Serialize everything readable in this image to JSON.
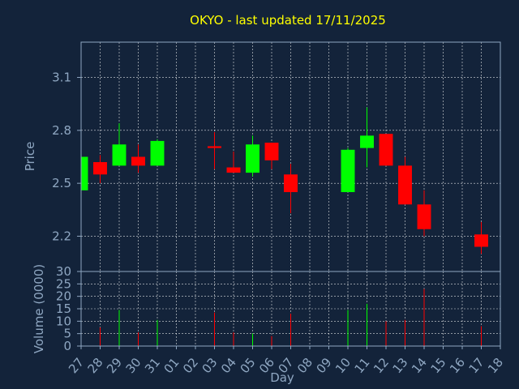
{
  "chart_data": {
    "type": "candlestick",
    "title": "OKYO - last updated 17/11/2025",
    "xlabel": "Day",
    "price_panel": {
      "ylabel": "Price",
      "ylim": [
        2.0,
        3.3
      ],
      "yticks": [
        2.2,
        2.5,
        2.8,
        3.1
      ],
      "ytick_labels": [
        "2.2",
        "2.5",
        "2.8",
        "3.1"
      ]
    },
    "volume_panel": {
      "ylabel": "Volume (0000)",
      "ylim": [
        0,
        30
      ],
      "yticks": [
        0,
        5,
        10,
        15,
        20,
        25,
        30
      ],
      "ytick_labels": [
        "0",
        "5",
        "10",
        "15",
        "20",
        "25",
        "30"
      ]
    },
    "x_tick_labels": [
      "27",
      "28",
      "29",
      "30",
      "31",
      "01",
      "02",
      "03",
      "04",
      "05",
      "06",
      "07",
      "08",
      "09",
      "10",
      "11",
      "12",
      "13",
      "14",
      "15",
      "16",
      "17",
      "18"
    ],
    "colors": {
      "up": "#00ff00",
      "down": "#ff0000",
      "background": "#13233a",
      "title": "#ffff00",
      "axis": "#8fa7c2",
      "grid": "#ffffff"
    },
    "candles": [
      {
        "day": "27",
        "open": 2.46,
        "high": 2.65,
        "low": 2.46,
        "close": 2.65,
        "volume": 0
      },
      {
        "day": "28",
        "open": 2.62,
        "high": 2.66,
        "low": 2.5,
        "close": 2.55,
        "volume": 7.5
      },
      {
        "day": "29",
        "open": 2.6,
        "high": 2.84,
        "low": 2.6,
        "close": 2.72,
        "volume": 14.5
      },
      {
        "day": "30",
        "open": 2.65,
        "high": 2.72,
        "low": 2.56,
        "close": 2.6,
        "volume": 5.5
      },
      {
        "day": "31",
        "open": 2.6,
        "high": 2.75,
        "low": 2.6,
        "close": 2.74,
        "volume": 10.5
      },
      {
        "day": "03",
        "open": 2.71,
        "high": 2.79,
        "low": 2.58,
        "close": 2.7,
        "volume": 13.5
      },
      {
        "day": "04",
        "open": 2.59,
        "high": 2.68,
        "low": 2.56,
        "close": 2.56,
        "volume": 5.5
      },
      {
        "day": "05",
        "open": 2.56,
        "high": 2.77,
        "low": 2.54,
        "close": 2.72,
        "volume": 5
      },
      {
        "day": "06",
        "open": 2.73,
        "high": 2.73,
        "low": 2.58,
        "close": 2.63,
        "volume": 4
      },
      {
        "day": "07",
        "open": 2.55,
        "high": 2.61,
        "low": 2.33,
        "close": 2.45,
        "volume": 13
      },
      {
        "day": "10",
        "open": 2.45,
        "high": 2.7,
        "low": 2.45,
        "close": 2.69,
        "volume": 14.5
      },
      {
        "day": "11",
        "open": 2.7,
        "high": 2.93,
        "low": 2.59,
        "close": 2.77,
        "volume": 17
      },
      {
        "day": "12",
        "open": 2.78,
        "high": 2.78,
        "low": 2.6,
        "close": 2.6,
        "volume": 10
      },
      {
        "day": "13",
        "open": 2.6,
        "high": 2.65,
        "low": 2.38,
        "close": 2.38,
        "volume": 10.5
      },
      {
        "day": "14",
        "open": 2.38,
        "high": 2.46,
        "low": 2.2,
        "close": 2.24,
        "volume": 23
      },
      {
        "day": "17",
        "open": 2.21,
        "high": 2.28,
        "low": 2.1,
        "close": 2.14,
        "volume": 8
      }
    ]
  }
}
